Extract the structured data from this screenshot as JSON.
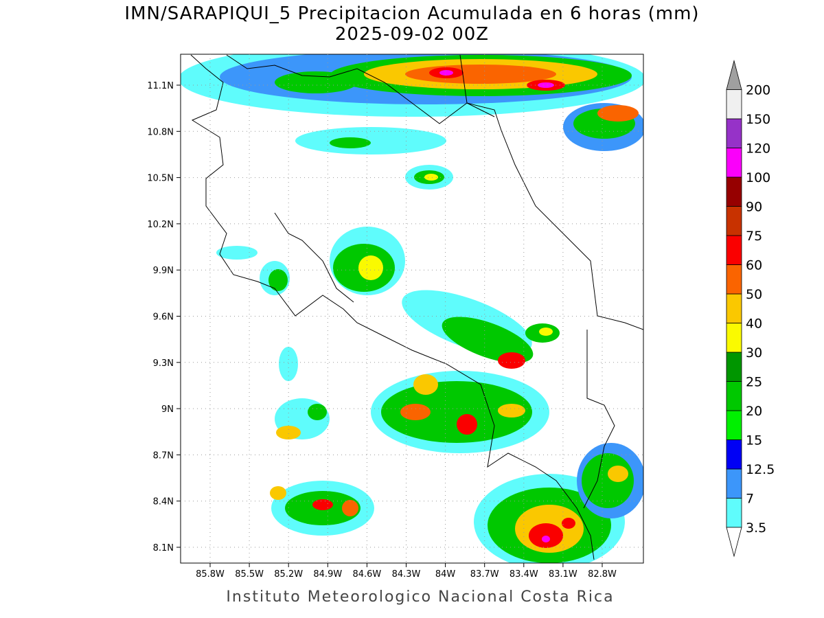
{
  "title": [
    "IMN/SARAPIQUI_5 Precipitacion Acumulada en 6 horas (mm)",
    "2025-09-02 00Z"
  ],
  "map": {
    "xticks": [
      "85.8W",
      "85.5W",
      "85.2W",
      "84.9W",
      "84.6W",
      "84.3W",
      "84W",
      "83.7W",
      "83.4W",
      "83.1W",
      "82.8W"
    ],
    "yticks": [
      "11.1N",
      "10.8N",
      "10.5N",
      "10.2N",
      "9.9N",
      "9.6N",
      "9.3N",
      "9N",
      "8.7N",
      "8.4N",
      "8.1N"
    ]
  },
  "colorbar": {
    "bands": [
      {
        "label": "3.5",
        "color": "#5ffcfc"
      },
      {
        "label": "7",
        "color": "#3c96fa"
      },
      {
        "label": "12.5",
        "color": "#0000f5"
      },
      {
        "label": "15",
        "color": "#00f000"
      },
      {
        "label": "20",
        "color": "#00c800"
      },
      {
        "label": "25",
        "color": "#009600"
      },
      {
        "label": "30",
        "color": "#fafa00"
      },
      {
        "label": "40",
        "color": "#fac800"
      },
      {
        "label": "50",
        "color": "#fa6400"
      },
      {
        "label": "60",
        "color": "#fa0000"
      },
      {
        "label": "75",
        "color": "#c83200"
      },
      {
        "label": "90",
        "color": "#960000"
      },
      {
        "label": "100",
        "color": "#fa00fa"
      },
      {
        "label": "120",
        "color": "#9632c8"
      },
      {
        "label": "150",
        "color": "#f0f0f0"
      },
      {
        "label": "200",
        "color": "#a0a0a0"
      }
    ]
  },
  "footer": "Instituto Meteorologico Nacional Costa Rica"
}
